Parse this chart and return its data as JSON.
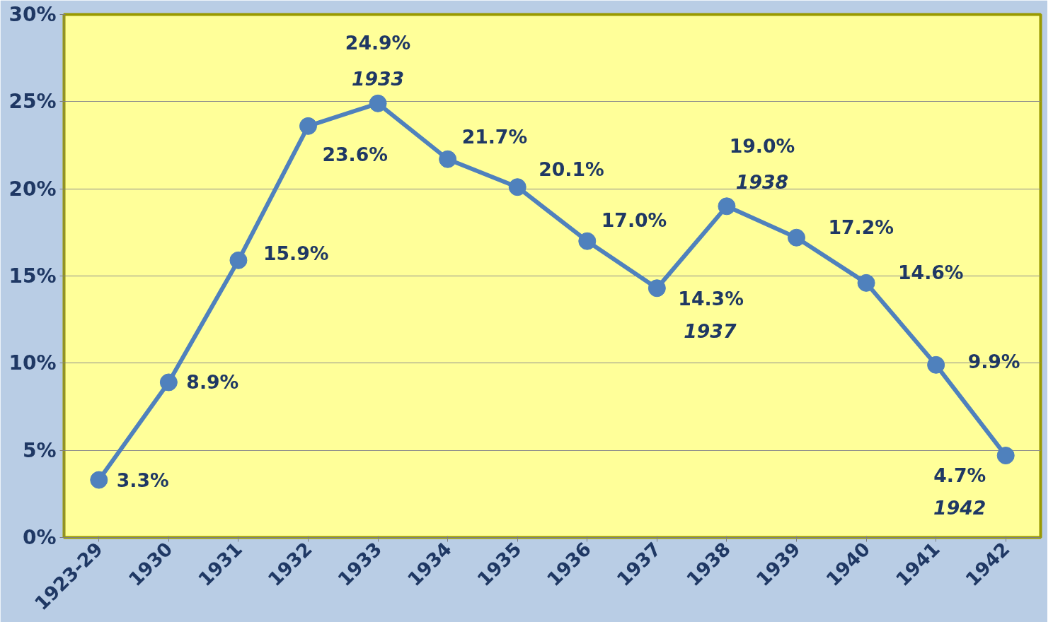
{
  "chart_data": {
    "type": "line",
    "categories": [
      "1923-29",
      "1930",
      "1931",
      "1932",
      "1933",
      "1934",
      "1935",
      "1936",
      "1937",
      "1938",
      "1939",
      "1940",
      "1941",
      "1942"
    ],
    "series": [
      {
        "color": "#4f81bd",
        "values": [
          3.3,
          8.9,
          15.9,
          23.6,
          24.9,
          21.7,
          20.1,
          17.0,
          14.3,
          19.0,
          17.2,
          14.6,
          9.9,
          4.7
        ],
        "value_labels": [
          "3.3%",
          "8.9%",
          "15.9%",
          "23.6%",
          "24.9%",
          "21.7%",
          "20.1%",
          "17.0%",
          "14.3%",
          "19.0%",
          "17.2%",
          "14.6%",
          "9.9%",
          "4.7%"
        ]
      }
    ],
    "ylim": [
      0,
      30
    ],
    "yticks": [
      {
        "value": 0,
        "label": "0%"
      },
      {
        "value": 5,
        "label": "5%"
      },
      {
        "value": 10,
        "label": "10%"
      },
      {
        "value": 15,
        "label": "15%"
      },
      {
        "value": 20,
        "label": "20%"
      },
      {
        "value": 25,
        "label": "25%"
      },
      {
        "value": 30,
        "label": "30%"
      }
    ],
    "grid": "y",
    "marker": "circle",
    "line_style": "solid",
    "annotations": [
      {
        "text": "1933",
        "x": "1933",
        "y": 24.9
      },
      {
        "text": "1937",
        "x": "1937",
        "y": 14.3
      },
      {
        "text": "1938",
        "x": "1938",
        "y": 19.0
      },
      {
        "text": "1942",
        "x": "1942",
        "y": 4.7
      }
    ]
  }
}
